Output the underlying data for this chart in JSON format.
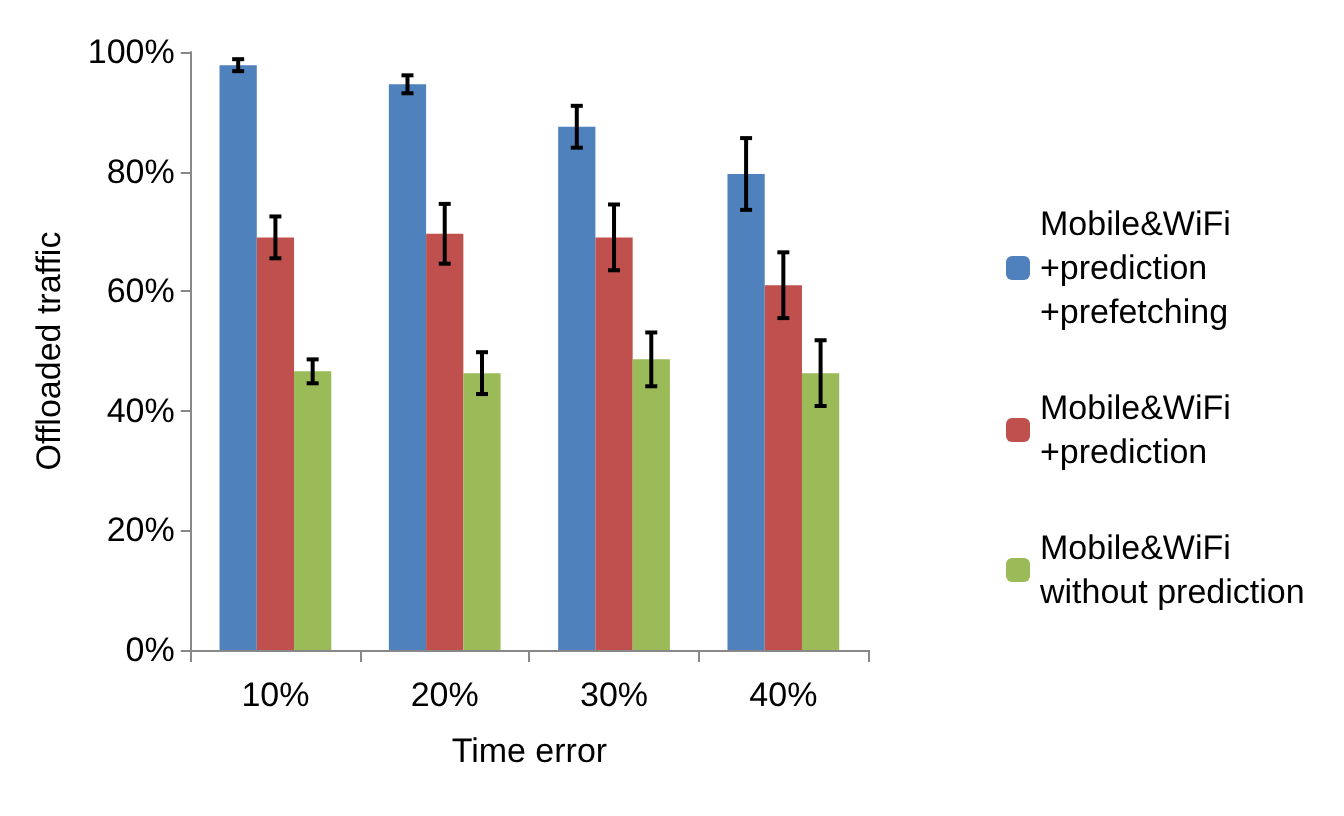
{
  "chart_data": {
    "type": "bar",
    "xlabel": "Time error",
    "ylabel": "Offloaded traffic",
    "categories": [
      "10%",
      "20%",
      "30%",
      "40%"
    ],
    "series": [
      {
        "name": "Mobile&WiFi +prediction +prefetching",
        "color": "#4f81bd",
        "values": [
          97.8,
          94.6,
          87.5,
          79.6
        ],
        "errors": [
          1,
          1.5,
          3.5,
          6
        ]
      },
      {
        "name": "Mobile&WiFi +prediction",
        "color": "#c0504d",
        "values": [
          69,
          69.6,
          69,
          61
        ],
        "errors": [
          3.5,
          5,
          5.5,
          5.5
        ]
      },
      {
        "name": "Mobile&WiFi without prediction",
        "color": "#9bbb59",
        "values": [
          46.6,
          46.3,
          48.6,
          46.3
        ],
        "errors": [
          2,
          3.5,
          4.5,
          5.5
        ]
      }
    ],
    "ylim": [
      0,
      100
    ],
    "yticks": [
      {
        "value": 0,
        "label": "0%"
      },
      {
        "value": 20,
        "label": "20%"
      },
      {
        "value": 40,
        "label": "40%"
      },
      {
        "value": 60,
        "label": "60%"
      },
      {
        "value": 80,
        "label": "80%"
      },
      {
        "value": 100,
        "label": "100%"
      }
    ],
    "grid": false,
    "legend": "right"
  }
}
